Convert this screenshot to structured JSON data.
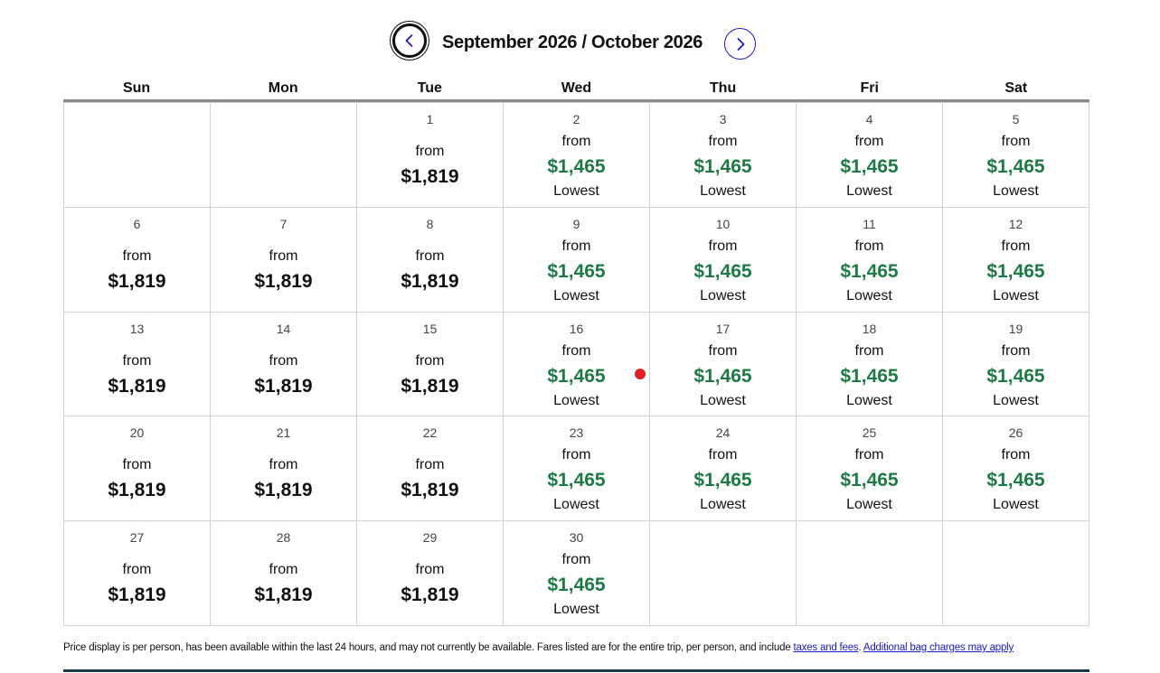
{
  "header": {
    "month_title": "September 2026 / October 2026",
    "prev_icon": "chevron-left-icon",
    "next_icon": "chevron-right-icon"
  },
  "weekdays": [
    "Sun",
    "Mon",
    "Tue",
    "Wed",
    "Thu",
    "Fri",
    "Sat"
  ],
  "calendar": {
    "from_label": "from",
    "lowest_label": "Lowest",
    "lowest_color": "#1e7a45",
    "leading_blank_days": 2,
    "days": [
      {
        "day": "1",
        "price": "$1,819",
        "lowest": false
      },
      {
        "day": "2",
        "price": "$1,465",
        "lowest": true
      },
      {
        "day": "3",
        "price": "$1,465",
        "lowest": true
      },
      {
        "day": "4",
        "price": "$1,465",
        "lowest": true
      },
      {
        "day": "5",
        "price": "$1,465",
        "lowest": true
      },
      {
        "day": "6",
        "price": "$1,819",
        "lowest": false
      },
      {
        "day": "7",
        "price": "$1,819",
        "lowest": false
      },
      {
        "day": "8",
        "price": "$1,819",
        "lowest": false
      },
      {
        "day": "9",
        "price": "$1,465",
        "lowest": true
      },
      {
        "day": "10",
        "price": "$1,465",
        "lowest": true
      },
      {
        "day": "11",
        "price": "$1,465",
        "lowest": true
      },
      {
        "day": "12",
        "price": "$1,465",
        "lowest": true
      },
      {
        "day": "13",
        "price": "$1,819",
        "lowest": false
      },
      {
        "day": "14",
        "price": "$1,819",
        "lowest": false
      },
      {
        "day": "15",
        "price": "$1,819",
        "lowest": false
      },
      {
        "day": "16",
        "price": "$1,465",
        "lowest": true
      },
      {
        "day": "17",
        "price": "$1,465",
        "lowest": true
      },
      {
        "day": "18",
        "price": "$1,465",
        "lowest": true
      },
      {
        "day": "19",
        "price": "$1,465",
        "lowest": true
      },
      {
        "day": "20",
        "price": "$1,819",
        "lowest": false
      },
      {
        "day": "21",
        "price": "$1,819",
        "lowest": false
      },
      {
        "day": "22",
        "price": "$1,819",
        "lowest": false
      },
      {
        "day": "23",
        "price": "$1,465",
        "lowest": true
      },
      {
        "day": "24",
        "price": "$1,465",
        "lowest": true
      },
      {
        "day": "25",
        "price": "$1,465",
        "lowest": true
      },
      {
        "day": "26",
        "price": "$1,465",
        "lowest": true
      },
      {
        "day": "27",
        "price": "$1,819",
        "lowest": false
      },
      {
        "day": "28",
        "price": "$1,819",
        "lowest": false
      },
      {
        "day": "29",
        "price": "$1,819",
        "lowest": false
      },
      {
        "day": "30",
        "price": "$1,465",
        "lowest": true
      }
    ]
  },
  "footer": {
    "disclaimer_text": "Price display is per person, has been available within the last 24 hours, and may not currently be available. Fares listed are for the entire trip, per person, and include ",
    "taxes_link": "taxes and fees",
    "separator": ". ",
    "bag_link": "Additional bag charges may apply"
  }
}
